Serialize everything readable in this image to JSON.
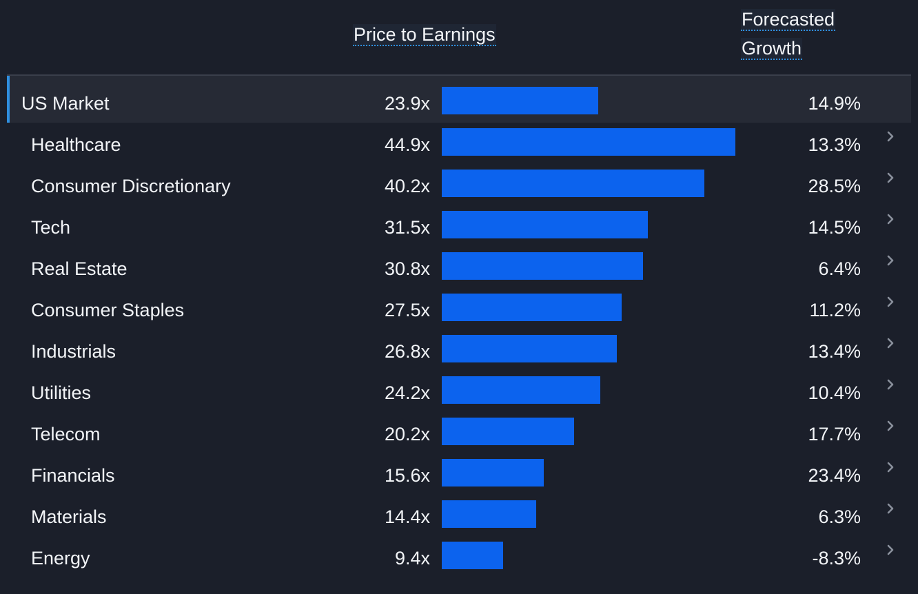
{
  "colors": {
    "background": "#1b1f2a",
    "highlight_row": "#262a35",
    "accent": "#2f8fe0",
    "bar": "#0c63ee",
    "chevron": "#8a909c",
    "text": "#f2f4f7"
  },
  "headers": {
    "pe": "Price to Earnings",
    "growth_line1": "Forecasted",
    "growth_line2": "Growth"
  },
  "rows": [
    {
      "name": "US Market",
      "pe_label": "23.9x",
      "growth_label": "14.9%"
    },
    {
      "name": "Healthcare",
      "pe_label": "44.9x",
      "growth_label": "13.3%"
    },
    {
      "name": "Consumer Discretionary",
      "pe_label": "40.2x",
      "growth_label": "28.5%"
    },
    {
      "name": "Tech",
      "pe_label": "31.5x",
      "growth_label": "14.5%"
    },
    {
      "name": "Real Estate",
      "pe_label": "30.8x",
      "growth_label": "6.4%"
    },
    {
      "name": "Consumer Staples",
      "pe_label": "27.5x",
      "growth_label": "11.2%"
    },
    {
      "name": "Industrials",
      "pe_label": "26.8x",
      "growth_label": "13.4%"
    },
    {
      "name": "Utilities",
      "pe_label": "24.2x",
      "growth_label": "10.4%"
    },
    {
      "name": "Telecom",
      "pe_label": "20.2x",
      "growth_label": "17.7%"
    },
    {
      "name": "Financials",
      "pe_label": "15.6x",
      "growth_label": "23.4%"
    },
    {
      "name": "Materials",
      "pe_label": "14.4x",
      "growth_label": "6.3%"
    },
    {
      "name": "Energy",
      "pe_label": "9.4x",
      "growth_label": "-8.3%"
    }
  ],
  "chart_data": {
    "type": "bar",
    "orientation": "horizontal",
    "categories": [
      "US Market",
      "Healthcare",
      "Consumer Discretionary",
      "Tech",
      "Real Estate",
      "Consumer Staples",
      "Industrials",
      "Utilities",
      "Telecom",
      "Financials",
      "Materials",
      "Energy"
    ],
    "series": [
      {
        "name": "Price to Earnings",
        "values": [
          23.9,
          44.9,
          40.2,
          31.5,
          30.8,
          27.5,
          26.8,
          24.2,
          20.2,
          15.6,
          14.4,
          9.4
        ]
      }
    ],
    "forecasted_growth_pct": [
      14.9,
      13.3,
      28.5,
      14.5,
      6.4,
      11.2,
      13.4,
      10.4,
      17.7,
      23.4,
      6.3,
      -8.3
    ],
    "xlim": [
      0,
      44.9
    ],
    "grid": false,
    "legend": "none"
  }
}
